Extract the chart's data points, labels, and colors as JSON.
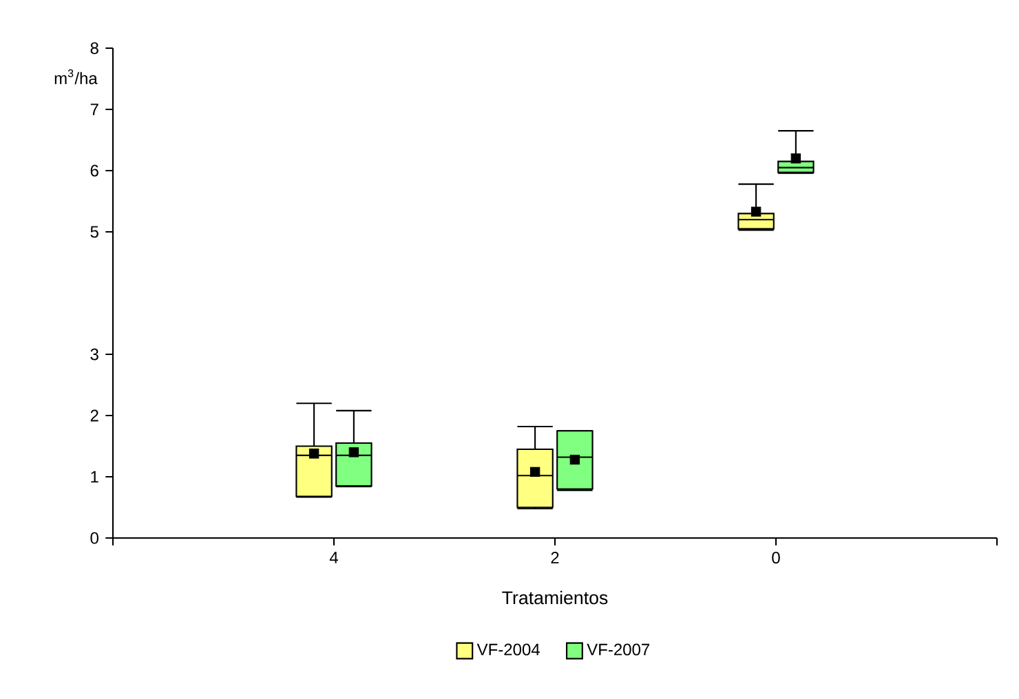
{
  "chart_data": {
    "type": "box",
    "xlabel": "Tratamientos",
    "ylabel": "m$^{3}$/ha",
    "categories": [
      "4",
      "2",
      "0"
    ],
    "ylim": [
      0,
      8
    ],
    "yticks": [
      0,
      1,
      2,
      3,
      5,
      6,
      7,
      8
    ],
    "legend": "bottom",
    "grid": false,
    "series": [
      {
        "name": "VF-2004",
        "color": "#ffff80",
        "boxes": [
          {
            "low": 0.67,
            "q1": 0.68,
            "median": 1.35,
            "q3": 1.5,
            "high": 2.2,
            "mean": 1.38
          },
          {
            "low": 0.48,
            "q1": 0.5,
            "median": 1.02,
            "q3": 1.45,
            "high": 1.82,
            "mean": 1.08
          },
          {
            "low": 5.03,
            "q1": 5.05,
            "median": 5.2,
            "q3": 5.3,
            "high": 5.78,
            "mean": 5.33
          }
        ]
      },
      {
        "name": "VF-2007",
        "color": "#80ff80",
        "boxes": [
          {
            "low": 0.84,
            "q1": 0.85,
            "median": 1.35,
            "q3": 1.55,
            "high": 2.08,
            "mean": 1.4
          },
          {
            "low": 0.78,
            "q1": 0.8,
            "median": 1.32,
            "q3": 1.75,
            "high": 1.75,
            "mean": 1.28
          },
          {
            "low": 5.96,
            "q1": 5.97,
            "median": 6.05,
            "q3": 6.15,
            "high": 6.65,
            "mean": 6.2
          }
        ]
      }
    ]
  }
}
